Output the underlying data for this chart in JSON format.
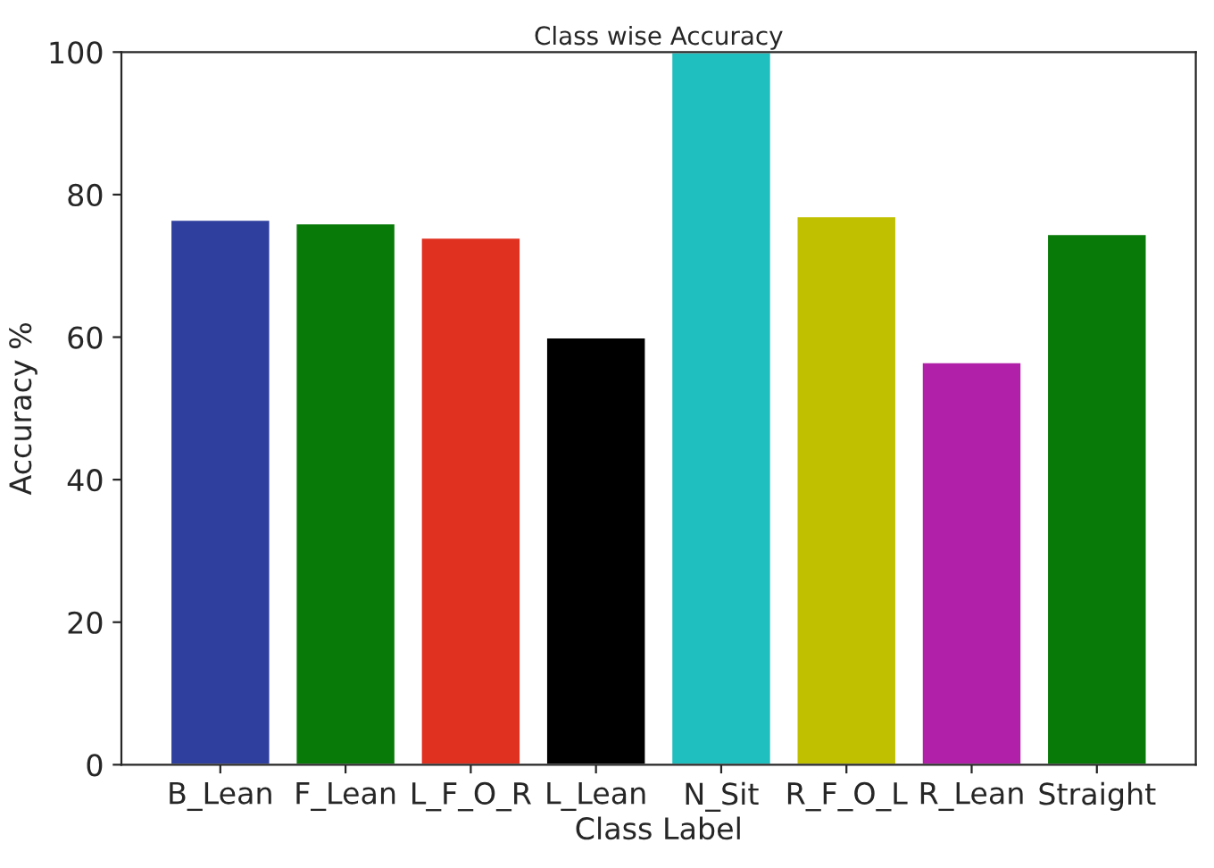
{
  "chart_data": {
    "type": "bar",
    "title": "Class wise Accuracy",
    "xlabel": "Class Label",
    "ylabel": "Accuracy %",
    "categories": [
      "B_Lean",
      "F_Lean",
      "L_F_O_R",
      "L_Lean",
      "N_Sit",
      "R_F_O_L",
      "R_Lean",
      "Straight"
    ],
    "values": [
      76.5,
      76,
      74,
      60,
      100,
      77,
      56.5,
      74.5
    ],
    "colors": [
      "#2e3f9e",
      "#087a08",
      "#e03020",
      "#000000",
      "#1fbfbf",
      "#c0c000",
      "#b020a8",
      "#087a08"
    ],
    "ylim": [
      0,
      100
    ],
    "yticks": [
      0,
      20,
      40,
      60,
      80,
      100
    ],
    "grid": false
  }
}
